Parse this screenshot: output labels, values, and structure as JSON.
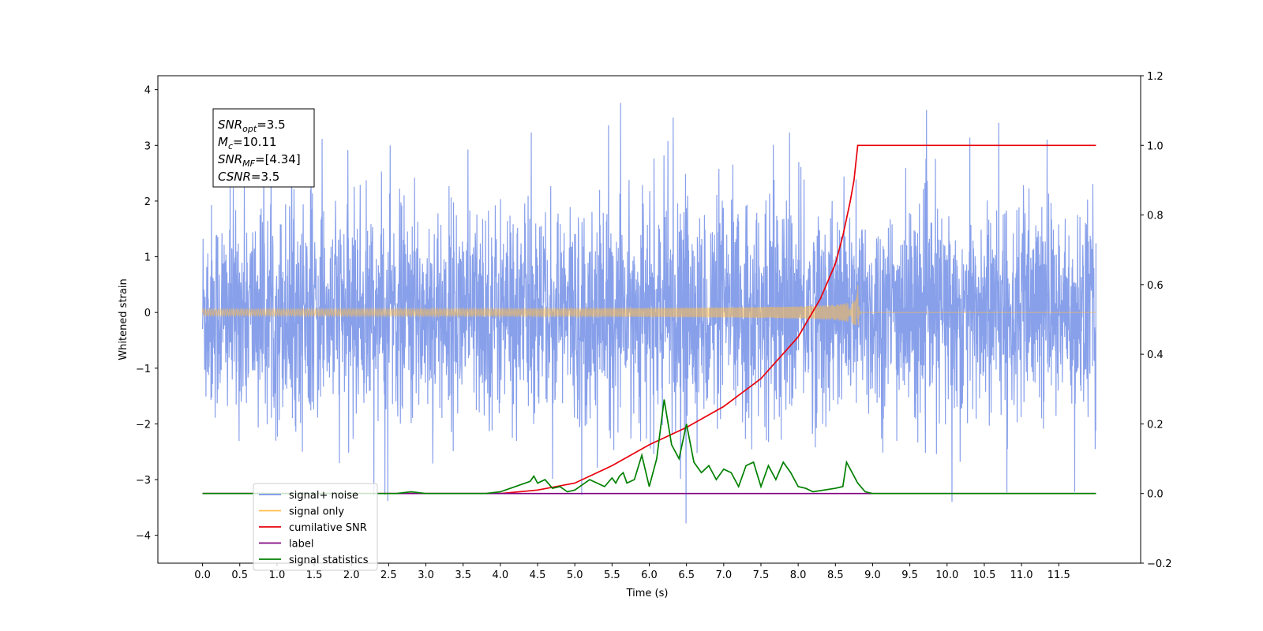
{
  "chart_data": {
    "type": "line",
    "xlabel": "Time (s)",
    "ylabel": "Whitened strain",
    "xlim": [
      -0.6,
      12.6
    ],
    "ylim": [
      -4.5,
      4.25
    ],
    "y2lim": [
      -0.2,
      1.2
    ],
    "x_ticks": [
      0.0,
      0.5,
      1.0,
      1.5,
      2.0,
      2.5,
      3.0,
      3.5,
      4.0,
      4.5,
      5.0,
      5.5,
      6.0,
      6.5,
      7.0,
      7.5,
      8.0,
      8.5,
      9.0,
      9.5,
      10.0,
      10.5,
      11.0,
      11.5
    ],
    "x_tick_labels": [
      "0.0",
      "0.5",
      "1.0",
      "1.5",
      "2.0",
      "2.5",
      "3.0",
      "3.5",
      "4.0",
      "4.5",
      "5.0",
      "5.5",
      "6.0",
      "6.5",
      "7.0",
      "7.5",
      "8.0",
      "8.5",
      "9.0",
      "9.5",
      "10.0",
      "10.5",
      "11.0",
      "11.5"
    ],
    "y_ticks": [
      -4,
      -3,
      -2,
      -1,
      0,
      1,
      2,
      3,
      4
    ],
    "y_tick_labels": [
      "−4",
      "−3",
      "−2",
      "−1",
      "0",
      "1",
      "2",
      "3",
      "4"
    ],
    "y2_ticks": [
      -0.2,
      0.0,
      0.2,
      0.4,
      0.6,
      0.8,
      1.0,
      1.2
    ],
    "y2_tick_labels": [
      "−0.2",
      "0.0",
      "0.2",
      "0.4",
      "0.6",
      "0.8",
      "1.0",
      "1.2"
    ],
    "grid": false,
    "legend_position": "lower-left",
    "annotation": {
      "lines": [
        {
          "base": "SNR",
          "sub": "opt",
          "rest": "=3.5"
        },
        {
          "base": "M",
          "sub": "c",
          "rest": "=10.11"
        },
        {
          "base": "SNR",
          "sub": "MF",
          "rest": "=[4.34]"
        },
        {
          "base": "CSNR",
          "sub": "",
          "rest": "=3.5"
        }
      ]
    },
    "series": [
      {
        "name": "signal+ noise",
        "color": "#7b96e8",
        "axis": "left",
        "description_kind": "noise",
        "x_range": [
          0.0,
          12.0
        ],
        "std": 0.95,
        "min": -3.95,
        "max": 3.88
      },
      {
        "name": "signal only",
        "color": "#ffbe4d",
        "axis": "left",
        "description_kind": "chirp",
        "x_range": [
          0.0,
          12.0
        ],
        "merger_time": 8.8,
        "peak_amplitude": 0.5
      },
      {
        "name": "cumilative SNR",
        "color": "#e8000b",
        "axis": "right",
        "x": [
          0.0,
          4.0,
          4.5,
          5.0,
          5.5,
          6.0,
          6.5,
          7.0,
          7.5,
          8.0,
          8.3,
          8.5,
          8.6,
          8.7,
          8.75,
          8.8,
          8.81,
          12.0
        ],
        "y": [
          0.0,
          0.0,
          0.01,
          0.03,
          0.08,
          0.14,
          0.19,
          0.25,
          0.33,
          0.45,
          0.56,
          0.66,
          0.74,
          0.84,
          0.9,
          1.0,
          1.0,
          1.0
        ]
      },
      {
        "name": "label",
        "color": "#800080",
        "axis": "right",
        "x": [
          0.0,
          12.0
        ],
        "y": [
          0.0,
          0.0
        ]
      },
      {
        "name": "signal statistics",
        "color": "#008000",
        "axis": "right",
        "x": [
          0.0,
          2.6,
          2.8,
          3.0,
          3.5,
          3.8,
          4.0,
          4.2,
          4.4,
          4.45,
          4.5,
          4.6,
          4.7,
          4.8,
          4.9,
          5.0,
          5.2,
          5.3,
          5.4,
          5.5,
          5.55,
          5.6,
          5.65,
          5.7,
          5.8,
          5.9,
          6.0,
          6.1,
          6.2,
          6.3,
          6.4,
          6.5,
          6.6,
          6.7,
          6.8,
          6.9,
          7.0,
          7.1,
          7.2,
          7.3,
          7.4,
          7.5,
          7.6,
          7.7,
          7.8,
          7.9,
          8.0,
          8.1,
          8.2,
          8.5,
          8.6,
          8.65,
          8.7,
          8.8,
          8.9,
          9.0,
          9.1,
          9.5,
          12.0
        ],
        "y": [
          0.0,
          0.0,
          0.005,
          0.0,
          0.0,
          0.0,
          0.005,
          0.02,
          0.035,
          0.05,
          0.03,
          0.04,
          0.015,
          0.02,
          0.005,
          0.01,
          0.04,
          0.03,
          0.02,
          0.045,
          0.03,
          0.05,
          0.06,
          0.03,
          0.04,
          0.11,
          0.02,
          0.1,
          0.27,
          0.14,
          0.1,
          0.2,
          0.09,
          0.06,
          0.08,
          0.04,
          0.07,
          0.06,
          0.02,
          0.08,
          0.09,
          0.02,
          0.08,
          0.04,
          0.09,
          0.06,
          0.02,
          0.015,
          0.005,
          0.015,
          0.02,
          0.09,
          0.07,
          0.03,
          0.005,
          0.0,
          0.0,
          0.0,
          0.0
        ]
      }
    ]
  }
}
